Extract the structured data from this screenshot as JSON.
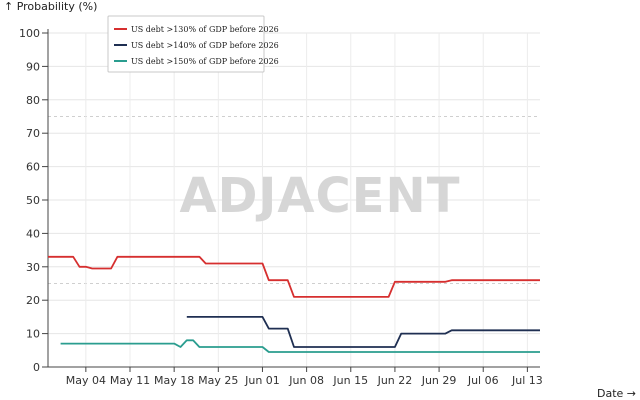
{
  "watermark": "ADJACENT",
  "chart_data": {
    "type": "line",
    "xlabel": "Date →",
    "ylabel": "↑ Probability (%)",
    "ylim": [
      0,
      100
    ],
    "xlim": [
      "2025-04-28",
      "2025-07-15"
    ],
    "y_ticks": [
      0,
      10,
      20,
      30,
      40,
      50,
      60,
      70,
      80,
      90,
      100
    ],
    "x_ticks": [
      {
        "date": "2025-05-04",
        "label": "May 04"
      },
      {
        "date": "2025-05-11",
        "label": "May 11"
      },
      {
        "date": "2025-05-18",
        "label": "May 18"
      },
      {
        "date": "2025-05-25",
        "label": "May 25"
      },
      {
        "date": "2025-06-01",
        "label": "Jun 01"
      },
      {
        "date": "2025-06-08",
        "label": "Jun 08"
      },
      {
        "date": "2025-06-15",
        "label": "Jun 15"
      },
      {
        "date": "2025-06-22",
        "label": "Jun 22"
      },
      {
        "date": "2025-06-29",
        "label": "Jun 29"
      },
      {
        "date": "2025-07-06",
        "label": "Jul 06"
      },
      {
        "date": "2025-07-13",
        "label": "Jul 13"
      }
    ],
    "grid": true,
    "reference_lines": [
      25,
      75
    ],
    "legend_position": "top-left",
    "series": [
      {
        "name": "US debt >130% of GDP before 2026",
        "color": "#d62f2f",
        "points": [
          [
            "2025-04-28",
            33
          ],
          [
            "2025-05-02",
            33
          ],
          [
            "2025-05-03",
            30
          ],
          [
            "2025-05-04",
            30
          ],
          [
            "2025-05-05",
            29.5
          ],
          [
            "2025-05-08",
            29.5
          ],
          [
            "2025-05-09",
            33
          ],
          [
            "2025-05-22",
            33
          ],
          [
            "2025-05-23",
            31
          ],
          [
            "2025-06-01",
            31
          ],
          [
            "2025-06-02",
            26
          ],
          [
            "2025-06-05",
            26
          ],
          [
            "2025-06-06",
            21
          ],
          [
            "2025-06-21",
            21
          ],
          [
            "2025-06-22",
            25.5
          ],
          [
            "2025-06-30",
            25.5
          ],
          [
            "2025-07-01",
            26
          ],
          [
            "2025-07-15",
            26
          ]
        ]
      },
      {
        "name": "US debt >140% of GDP before 2026",
        "color": "#1f2f52",
        "points": [
          [
            "2025-05-20",
            15
          ],
          [
            "2025-06-01",
            15
          ],
          [
            "2025-06-02",
            11.5
          ],
          [
            "2025-06-05",
            11.5
          ],
          [
            "2025-06-06",
            6
          ],
          [
            "2025-06-22",
            6
          ],
          [
            "2025-06-23",
            10
          ],
          [
            "2025-06-30",
            10
          ],
          [
            "2025-07-01",
            11
          ],
          [
            "2025-07-15",
            11
          ]
        ]
      },
      {
        "name": "US debt >150% of GDP before 2026",
        "color": "#2a9d8f",
        "points": [
          [
            "2025-04-30",
            7
          ],
          [
            "2025-05-18",
            7
          ],
          [
            "2025-05-19",
            6
          ],
          [
            "2025-05-20",
            8
          ],
          [
            "2025-05-21",
            8
          ],
          [
            "2025-05-22",
            6
          ],
          [
            "2025-06-01",
            6
          ],
          [
            "2025-06-02",
            4.5
          ],
          [
            "2025-07-15",
            4.5
          ]
        ]
      }
    ]
  }
}
